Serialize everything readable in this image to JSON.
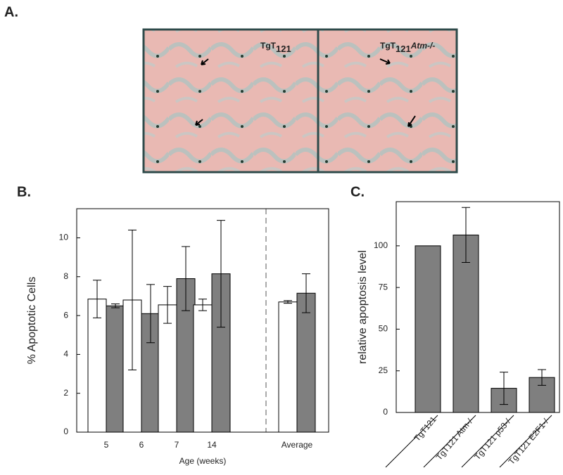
{
  "panel_labels": [
    "A.",
    "B.",
    "C."
  ],
  "micrographs": [
    {
      "label": "TgT",
      "subscript": "121"
    },
    {
      "label": "TgT",
      "subscript": "121",
      "genotype": "Atm-/-"
    }
  ],
  "chart_data": [
    {
      "type": "grouped-bar",
      "ylabel": "% Apoptotic Cells",
      "xlabel": "Age (weeks)",
      "categories": [
        "5",
        "6",
        "7",
        "14",
        "Average"
      ],
      "series": [
        {
          "color": "#ffffff",
          "values": [
            6.85,
            6.8,
            6.55,
            6.55,
            6.7
          ],
          "errors": [
            0.97,
            3.6,
            0.95,
            0.3,
            0.07
          ]
        },
        {
          "color": "#7f7f7f",
          "values": [
            6.5,
            6.1,
            7.9,
            8.15,
            7.15
          ],
          "errors": [
            0.1,
            1.5,
            1.65,
            2.75,
            1.0
          ]
        }
      ],
      "ylim": [
        0,
        11.5
      ],
      "yticks": [
        0,
        2,
        4,
        6,
        8,
        10
      ]
    },
    {
      "type": "bar",
      "ylabel": "relative apoptosis level",
      "categories": [
        "TgT121",
        "TgT121 Atm-/-",
        "TgT121 p53-/-",
        "TgT121 E2F1-/-"
      ],
      "color": "#7f7f7f",
      "values": [
        100,
        106.5,
        14.5,
        21
      ],
      "errors": [
        null,
        16.5,
        9.7,
        4.7
      ],
      "ylim": [
        0,
        126.5
      ],
      "yticks": [
        0,
        25,
        50,
        75,
        100
      ]
    }
  ]
}
